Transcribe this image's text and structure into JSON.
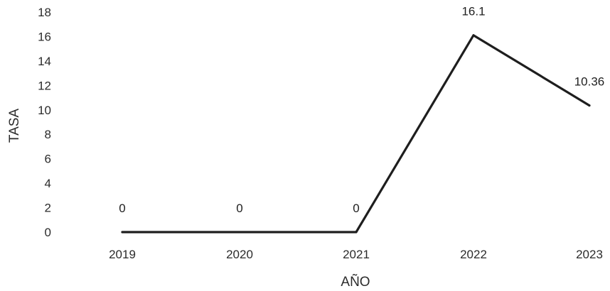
{
  "chart_data": {
    "type": "line",
    "categories": [
      "2019",
      "2020",
      "2021",
      "2022",
      "2023"
    ],
    "series": [
      {
        "values": [
          0,
          0,
          0,
          16.1,
          10.36
        ]
      }
    ],
    "data_labels": [
      "0",
      "0",
      "0",
      "16.1",
      "10.36"
    ],
    "xlabel": "AÑO",
    "ylabel": "TASA",
    "ylim": [
      0,
      18
    ],
    "yticks": [
      0,
      2,
      4,
      6,
      8,
      10,
      12,
      14,
      16,
      18
    ],
    "grid": false,
    "legend": "none",
    "colors": {
      "line": "#1e1e1e",
      "text": "#2b2b2b"
    }
  }
}
